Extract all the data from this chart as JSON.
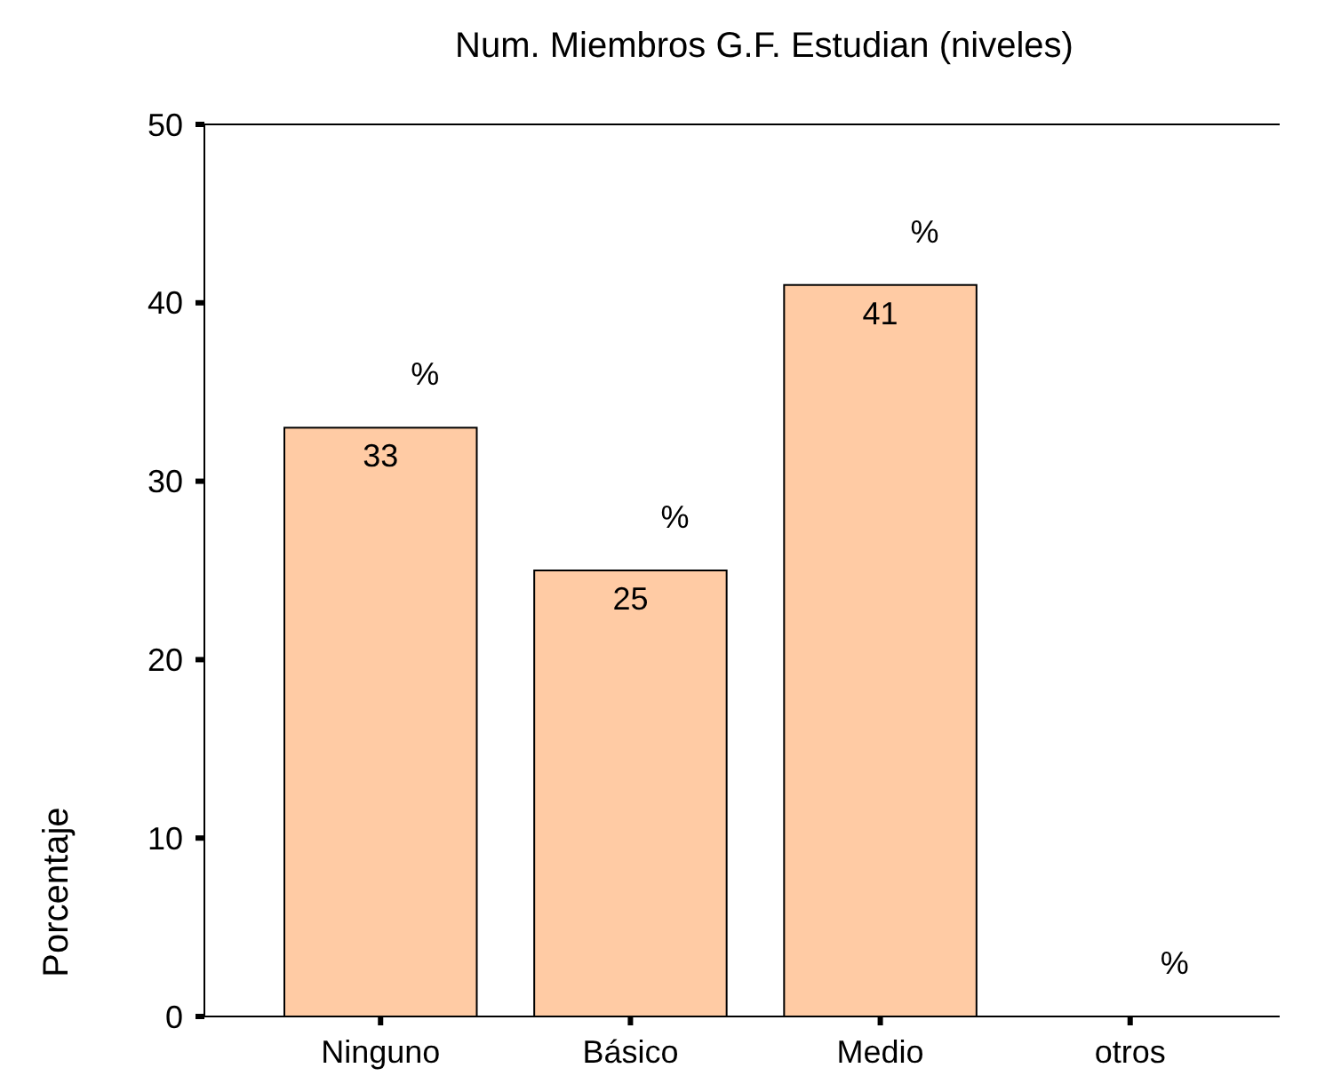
{
  "chart_data": {
    "type": "bar",
    "title": "Num. Miembros G.F. Estudian (niveles)",
    "ylabel": "Porcentaje",
    "categories": [
      "Ninguno",
      "Básico",
      "Medio",
      "otros"
    ],
    "values": [
      33,
      25,
      41,
      0
    ],
    "color": "#ffcba4",
    "value_labels": [
      "33",
      "25",
      "41",
      null
    ],
    "annotations": [
      {
        "text": "%",
        "x": "Ninguno",
        "y": 33
      },
      {
        "text": "%",
        "x": "Básico",
        "y": 25
      },
      {
        "text": "%",
        "x": "Medio",
        "y": 41
      },
      {
        "text": "%",
        "x": "otros",
        "y": 0
      }
    ],
    "ylim": [
      0,
      50
    ],
    "yticks": [
      0,
      10,
      20,
      30,
      40,
      50
    ],
    "grid": false
  }
}
